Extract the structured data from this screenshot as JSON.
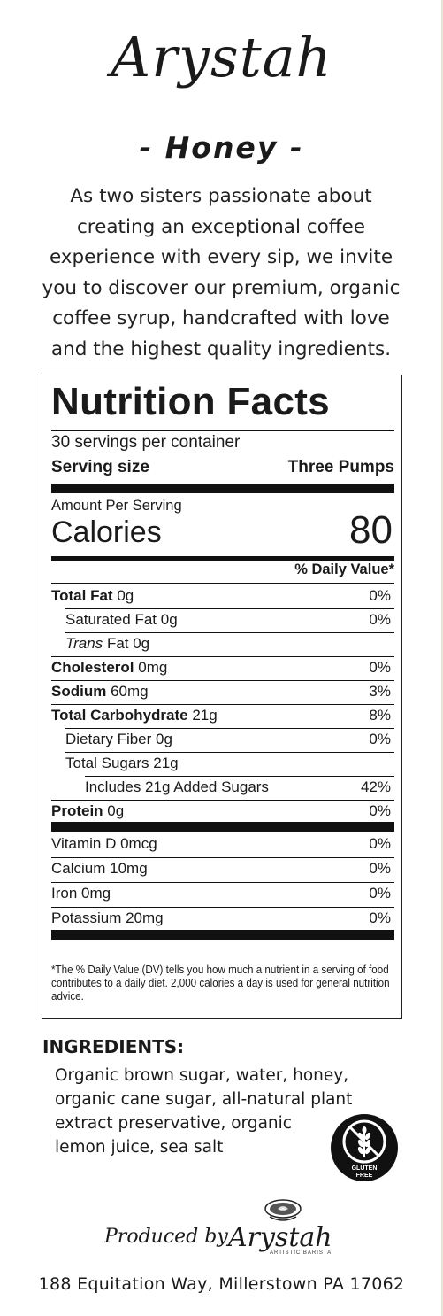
{
  "brand": "Arystah",
  "flavor": "- Honey -",
  "intro": "As two sisters passionate about creating an exceptional coffee experience with every sip, we invite you to discover our premium, organic coffee syrup, handcrafted with love and the highest quality ingredients.",
  "nutrition": {
    "title": "Nutrition Facts",
    "servings_per_container": "30 servings per container",
    "serving_size_label": "Serving size",
    "serving_size_value": "Three Pumps",
    "amount_per_serving": "Amount Per Serving",
    "calories_label": "Calories",
    "calories_value": "80",
    "dv_header": "% Daily Value*",
    "rows": [
      {
        "name": "Total Fat",
        "amount": "0g",
        "dv": "0%"
      },
      {
        "name": "Saturated Fat",
        "amount": "0g",
        "dv": "0%"
      },
      {
        "name": "Trans",
        "suffix": "Fat 0g",
        "dv": ""
      },
      {
        "name": "Cholesterol",
        "amount": "0mg",
        "dv": "0%"
      },
      {
        "name": "Sodium",
        "amount": "60mg",
        "dv": "3%"
      },
      {
        "name": "Total Carbohydrate",
        "amount": "21g",
        "dv": "8%"
      },
      {
        "name": "Dietary Fiber",
        "amount": "0g",
        "dv": "0%"
      },
      {
        "name": "Total Sugars",
        "amount": "21g",
        "dv": ""
      },
      {
        "name": "Includes 21g Added Sugars",
        "amount": "",
        "dv": "42%"
      },
      {
        "name": "Protein",
        "amount": "0g",
        "dv": "0%"
      }
    ],
    "vitamins": [
      {
        "name": "Vitamin D 0mcg",
        "dv": "0%"
      },
      {
        "name": "Calcium 10mg",
        "dv": "0%"
      },
      {
        "name": "Iron 0mg",
        "dv": "0%"
      },
      {
        "name": "Potassium 20mg",
        "dv": "0%"
      }
    ],
    "footnote": "*The % Daily Value (DV) tells you how much a nutrient in a serving of food contributes to a daily diet. 2,000 calories a day is used for general nutrition advice."
  },
  "ingredients": {
    "heading": "INGREDIENTS:",
    "lines": [
      "Organic brown sugar, water, honey,",
      "organic cane sugar, all-natural plant",
      "extract preservative, organic",
      "lemon juice, sea salt"
    ]
  },
  "gluten_badge": {
    "icon": "gluten-free-icon",
    "line1": "GLUTEN",
    "line2": "FREE"
  },
  "producer": {
    "produced_by": "Produced by",
    "brand": "Arystah",
    "tagline": "ARTISTIC BARISTA",
    "logo_icon": "latte-art-cup-icon"
  },
  "address": "188 Equitation Way, Millerstown PA 17062"
}
